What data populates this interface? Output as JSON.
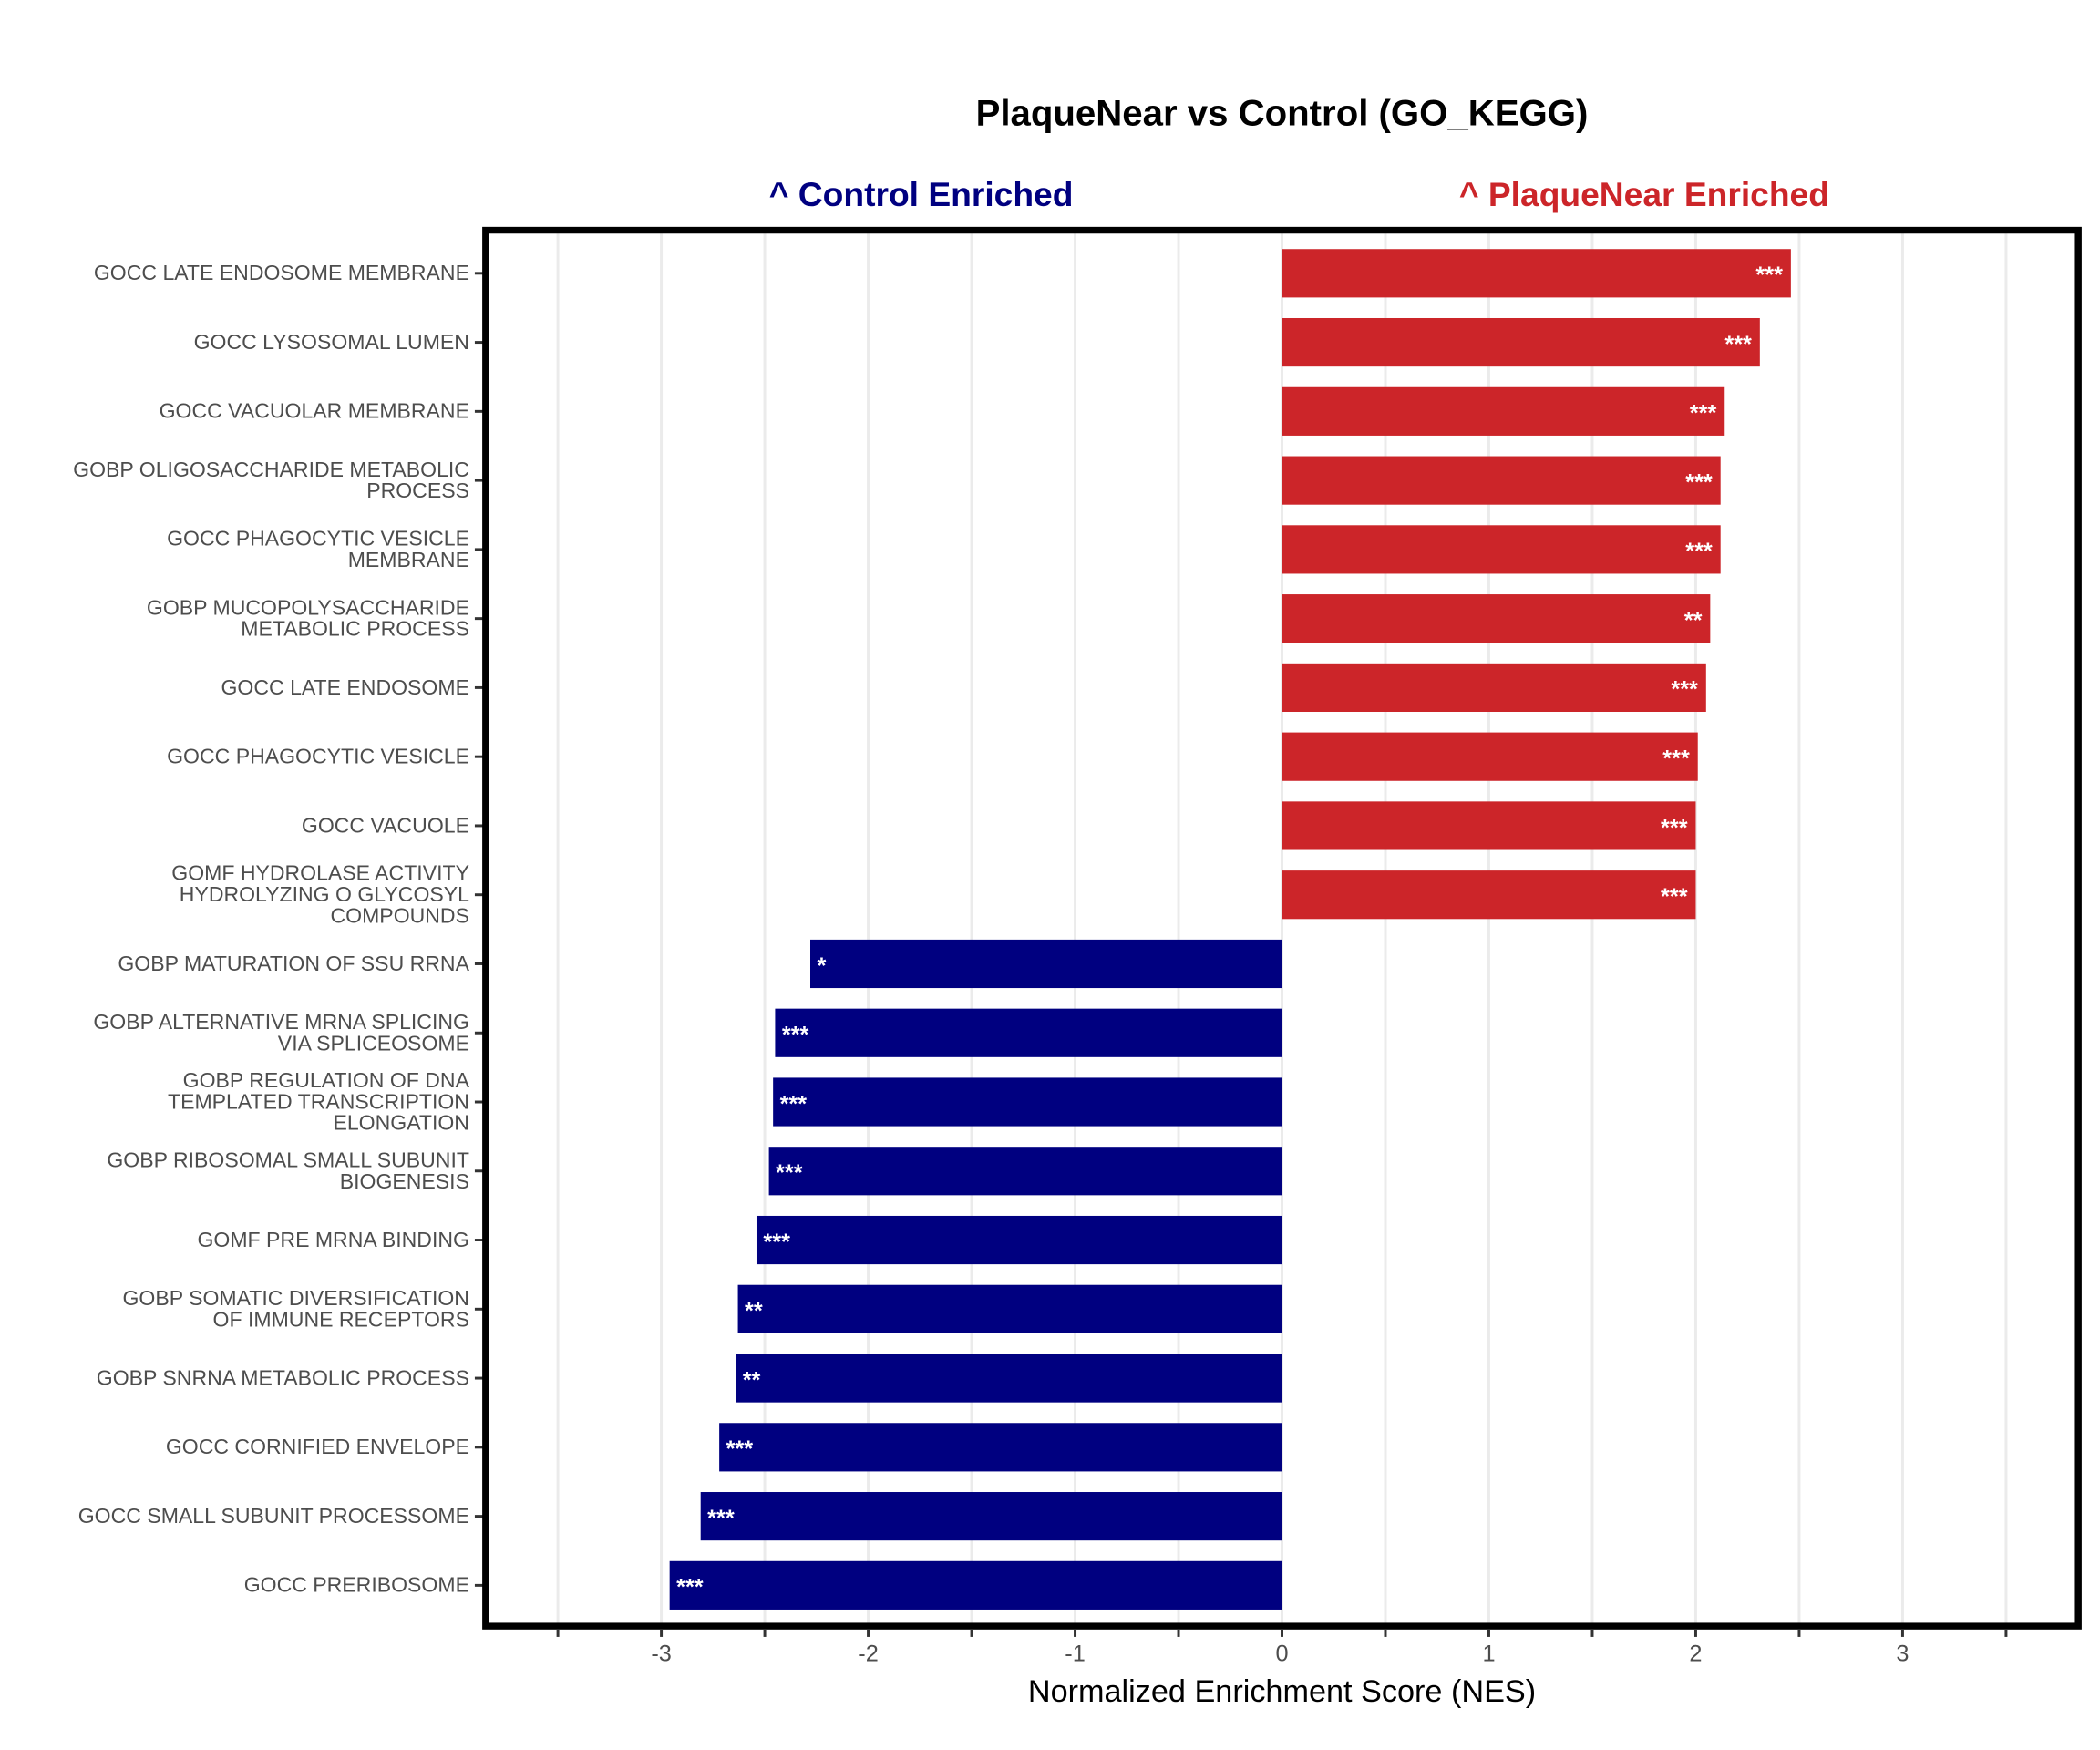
{
  "chart_data": {
    "type": "bar",
    "orientation": "horizontal",
    "title": "PlaqueNear vs Control (GO_KEGG)",
    "direction_labels": {
      "negative": "^ Control Enriched",
      "positive": "^ PlaqueNear Enriched"
    },
    "xlabel": "Normalized Enrichment Score (NES)",
    "ylabel": "",
    "xlim": [
      -3.5,
      3.5
    ],
    "xticks": [
      -3,
      -2,
      -1,
      0,
      1,
      2,
      3
    ],
    "xtick_labels": [
      "-3",
      "-2",
      "-1",
      "0",
      "1",
      "2",
      "3"
    ],
    "minor_xticks": [
      -3.5,
      -2.5,
      -1.5,
      -0.5,
      0.5,
      1.5,
      2.5,
      3.5
    ],
    "grid": true,
    "legend": "none",
    "colors": {
      "positive": "#CC2529",
      "negative": "#000080",
      "grid": "#ebebeb",
      "panel_border": "#000000"
    },
    "categories": [
      "GOCC LATE ENDOSOME MEMBRANE",
      "GOCC LYSOSOMAL LUMEN",
      "GOCC VACUOLAR MEMBRANE",
      "GOBP OLIGOSACCHARIDE METABOLIC\nPROCESS",
      "GOCC PHAGOCYTIC VESICLE\nMEMBRANE",
      "GOBP MUCOPOLYSACCHARIDE\nMETABOLIC PROCESS",
      "GOCC LATE ENDOSOME",
      "GOCC PHAGOCYTIC VESICLE",
      "GOCC VACUOLE",
      "GOMF HYDROLASE ACTIVITY\nHYDROLYZING O GLYCOSYL\nCOMPOUNDS",
      "GOBP MATURATION OF SSU RRNA",
      "GOBP ALTERNATIVE MRNA SPLICING\nVIA SPLICEOSOME",
      "GOBP REGULATION OF DNA\nTEMPLATED TRANSCRIPTION\nELONGATION",
      "GOBP RIBOSOMAL SMALL SUBUNIT\nBIOGENESIS",
      "GOMF PRE MRNA BINDING",
      "GOBP SOMATIC DIVERSIFICATION\nOF IMMUNE RECEPTORS",
      "GOBP SNRNA METABOLIC PROCESS",
      "GOCC CORNIFIED ENVELOPE",
      "GOCC SMALL SUBUNIT PROCESSOME",
      "GOCC PRERIBOSOME"
    ],
    "values": [
      2.46,
      2.31,
      2.14,
      2.12,
      2.12,
      2.07,
      2.05,
      2.01,
      2.0,
      2.0,
      -2.28,
      -2.45,
      -2.46,
      -2.48,
      -2.54,
      -2.63,
      -2.64,
      -2.72,
      -2.81,
      -2.96
    ],
    "significance": [
      "***",
      "***",
      "***",
      "***",
      "***",
      "**",
      "***",
      "***",
      "***",
      "***",
      "*",
      "***",
      "***",
      "***",
      "***",
      "**",
      "**",
      "***",
      "***",
      "***"
    ]
  }
}
